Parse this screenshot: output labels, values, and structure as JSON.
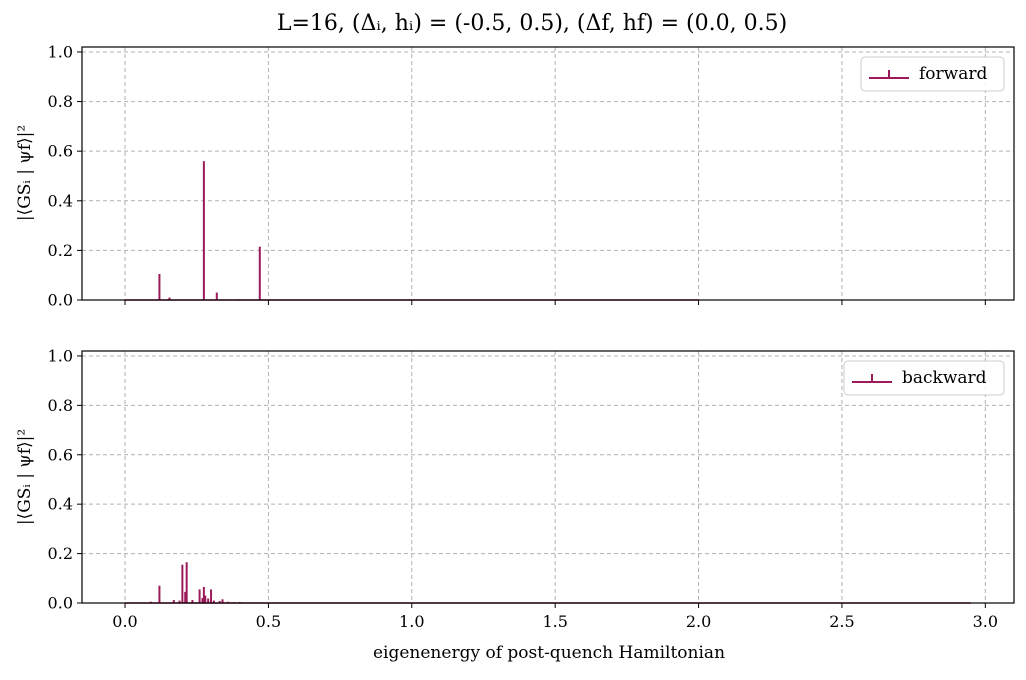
{
  "chart_data": {
    "title": "L=16,     (Δᵢ, hᵢ) = (-0.5, 0.5),   (Δf, hf) = (0.0, 0.5)",
    "xlabel": "eigenenergy of post-quench Hamiltonian",
    "xlim": [
      -0.15,
      3.1
    ],
    "xticks": [
      "0.0",
      "0.5",
      "1.0",
      "1.5",
      "2.0",
      "2.5",
      "3.0"
    ],
    "xtick_values": [
      0.0,
      0.5,
      1.0,
      1.5,
      2.0,
      2.5,
      3.0
    ],
    "yticks": [
      "0.0",
      "0.2",
      "0.4",
      "0.6",
      "0.8",
      "1.0"
    ],
    "ytick_values": [
      0.0,
      0.2,
      0.4,
      0.6,
      0.8,
      1.0
    ],
    "grid": true,
    "legend_position": "top-right",
    "color": "#9b1b5a",
    "panels": [
      {
        "type": "stem",
        "ylabel": "|⟨GSᵢ | ψf⟩|²",
        "ylim": [
          0,
          1.02
        ],
        "legend": "forward",
        "baseline_end": 2.0,
        "x": [
          0.0,
          0.12,
          0.155,
          0.275,
          0.32,
          0.4,
          0.47
        ],
        "y": [
          0.002,
          0.105,
          0.01,
          0.56,
          0.03,
          0.003,
          0.215
        ]
      },
      {
        "type": "stem",
        "ylabel": "|⟨GSᵢ | ψf⟩|²",
        "ylim": [
          0,
          1.02
        ],
        "legend": "backward",
        "baseline_end": 2.95,
        "x": [
          0.09,
          0.12,
          0.17,
          0.19,
          0.2,
          0.21,
          0.215,
          0.235,
          0.26,
          0.27,
          0.275,
          0.28,
          0.29,
          0.3,
          0.31,
          0.33,
          0.34,
          0.36,
          0.38,
          0.4
        ],
        "y": [
          0.005,
          0.07,
          0.012,
          0.01,
          0.155,
          0.045,
          0.165,
          0.012,
          0.055,
          0.02,
          0.065,
          0.03,
          0.018,
          0.055,
          0.01,
          0.008,
          0.015,
          0.005,
          0.003,
          0.004
        ]
      }
    ]
  }
}
